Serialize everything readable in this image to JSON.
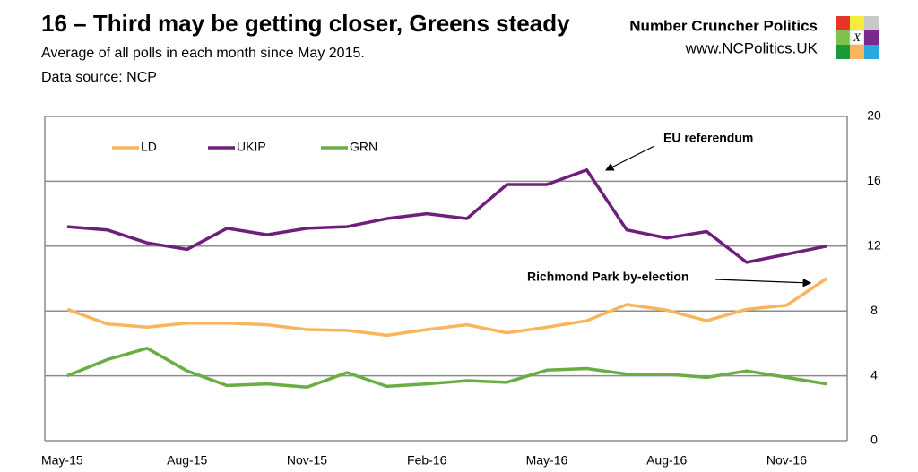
{
  "chart_data": {
    "type": "line",
    "title": "16 – Third may be getting closer, Greens steady",
    "subtitle": "Average of all polls in each month since May 2015.",
    "source": "Data source: NCP",
    "categories": [
      "May-15",
      null,
      null,
      "Aug-15",
      null,
      null,
      "Nov-15",
      null,
      null,
      "Feb-16",
      null,
      null,
      "May-16",
      null,
      null,
      "Aug-16",
      null,
      null,
      "Nov-16",
      null
    ],
    "series": [
      {
        "name": "LD",
        "color": "#f9b55b",
        "values": [
          8.1,
          7.2,
          7.0,
          7.25,
          7.25,
          7.15,
          6.85,
          6.8,
          6.5,
          6.85,
          7.15,
          6.65,
          7.0,
          7.4,
          8.4,
          8.05,
          7.4,
          8.1,
          8.35,
          10.0
        ]
      },
      {
        "name": "UKIP",
        "color": "#6e1f7c",
        "values": [
          13.2,
          13.0,
          12.2,
          11.8,
          13.1,
          12.7,
          13.1,
          13.2,
          13.7,
          14.0,
          13.7,
          15.8,
          15.8,
          16.7,
          13.0,
          12.5,
          12.9,
          11.0,
          11.5,
          12.0
        ]
      },
      {
        "name": "GRN",
        "color": "#6aad45",
        "values": [
          4.0,
          5.0,
          5.7,
          4.3,
          3.4,
          3.5,
          3.3,
          4.2,
          3.35,
          3.5,
          3.7,
          3.6,
          4.35,
          4.45,
          4.1,
          4.1,
          3.9,
          4.3,
          3.9,
          3.5
        ]
      }
    ],
    "ylim": [
      0,
      20
    ],
    "yticks": [
      0,
      4,
      8,
      12,
      16,
      20
    ],
    "grid": true,
    "annotations": [
      "EU referendum",
      "Richmond Park by-election"
    ]
  },
  "brand": {
    "name": "Number Cruncher Politics",
    "url": "www.NCPolitics.UK",
    "mark": "X"
  }
}
